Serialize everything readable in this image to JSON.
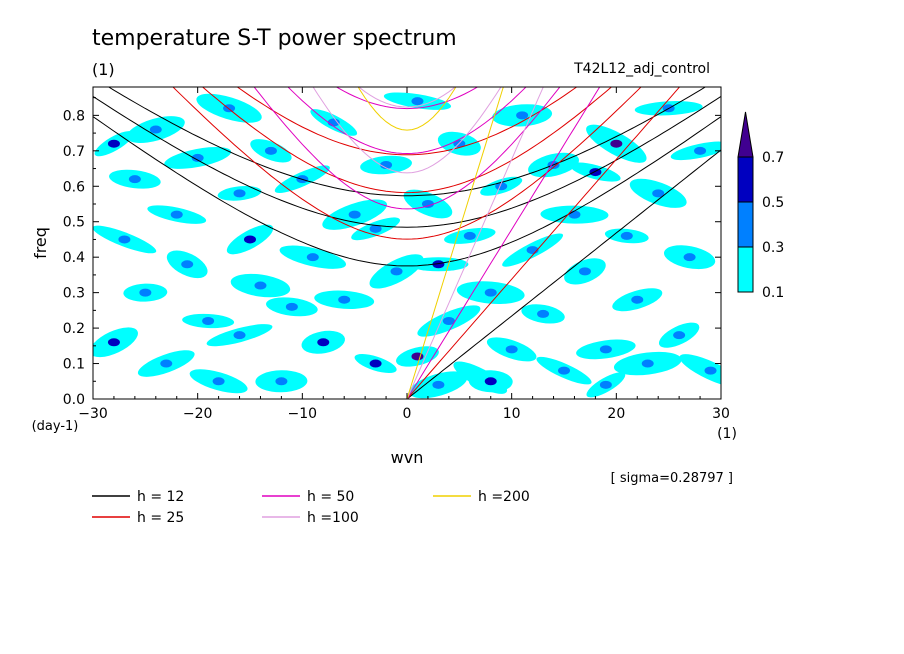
{
  "chart_data": {
    "type": "heatmap",
    "title": "temperature S-T power spectrum",
    "subtitle_left": "(1)",
    "subtitle_right": "T42L12_adj_control",
    "xlabel": "wvn",
    "ylabel": "freq",
    "x_unit": "(1)",
    "y_unit": "(day-1)",
    "xlim": [
      -30,
      30
    ],
    "ylim": [
      0,
      0.88
    ],
    "xticks": [
      -30,
      -20,
      -10,
      0,
      10,
      20,
      30
    ],
    "yticks": [
      0.0,
      0.1,
      0.2,
      0.3,
      0.4,
      0.5,
      0.6,
      0.7,
      0.8
    ],
    "sigma_note": "[ sigma=0.28797 ]",
    "colorbar": {
      "levels": [
        "0.1",
        "0.3",
        "0.5",
        "0.7"
      ],
      "colors": [
        "#00ffff",
        "#0080ff",
        "#0000c0",
        "#400090"
      ]
    },
    "blobs": [
      {
        "x": -28,
        "y": 0.72,
        "v": 0.5
      },
      {
        "x": -26,
        "y": 0.62,
        "v": 0.3
      },
      {
        "x": -24,
        "y": 0.76,
        "v": 0.3
      },
      {
        "x": -27,
        "y": 0.45,
        "v": 0.3
      },
      {
        "x": -25,
        "y": 0.3,
        "v": 0.3
      },
      {
        "x": -28,
        "y": 0.16,
        "v": 0.5
      },
      {
        "x": -22,
        "y": 0.52,
        "v": 0.3
      },
      {
        "x": -20,
        "y": 0.68,
        "v": 0.3
      },
      {
        "x": -21,
        "y": 0.38,
        "v": 0.3
      },
      {
        "x": -19,
        "y": 0.22,
        "v": 0.3
      },
      {
        "x": -23,
        "y": 0.1,
        "v": 0.3
      },
      {
        "x": -17,
        "y": 0.82,
        "v": 0.3
      },
      {
        "x": -16,
        "y": 0.58,
        "v": 0.3
      },
      {
        "x": -15,
        "y": 0.45,
        "v": 0.5
      },
      {
        "x": -14,
        "y": 0.32,
        "v": 0.3
      },
      {
        "x": -16,
        "y": 0.18,
        "v": 0.3
      },
      {
        "x": -13,
        "y": 0.7,
        "v": 0.3
      },
      {
        "x": -12,
        "y": 0.05,
        "v": 0.3
      },
      {
        "x": -10,
        "y": 0.62,
        "v": 0.3
      },
      {
        "x": -9,
        "y": 0.4,
        "v": 0.3
      },
      {
        "x": -8,
        "y": 0.16,
        "v": 0.5
      },
      {
        "x": -7,
        "y": 0.78,
        "v": 0.3
      },
      {
        "x": -6,
        "y": 0.28,
        "v": 0.3
      },
      {
        "x": -5,
        "y": 0.52,
        "v": 0.3
      },
      {
        "x": -3,
        "y": 0.1,
        "v": 0.5
      },
      {
        "x": -2,
        "y": 0.66,
        "v": 0.3
      },
      {
        "x": -1,
        "y": 0.36,
        "v": 0.3
      },
      {
        "x": 1,
        "y": 0.84,
        "v": 0.3
      },
      {
        "x": 1,
        "y": 0.12,
        "v": 0.7
      },
      {
        "x": 2,
        "y": 0.55,
        "v": 0.3
      },
      {
        "x": 3,
        "y": 0.38,
        "v": 0.5
      },
      {
        "x": 4,
        "y": 0.22,
        "v": 0.3
      },
      {
        "x": 5,
        "y": 0.72,
        "v": 0.3
      },
      {
        "x": 6,
        "y": 0.46,
        "v": 0.3
      },
      {
        "x": 7,
        "y": 0.06,
        "v": 0.3
      },
      {
        "x": 8,
        "y": 0.3,
        "v": 0.3
      },
      {
        "x": 9,
        "y": 0.6,
        "v": 0.3
      },
      {
        "x": 10,
        "y": 0.14,
        "v": 0.3
      },
      {
        "x": 11,
        "y": 0.8,
        "v": 0.3
      },
      {
        "x": 12,
        "y": 0.42,
        "v": 0.3
      },
      {
        "x": 13,
        "y": 0.24,
        "v": 0.3
      },
      {
        "x": 14,
        "y": 0.66,
        "v": 0.3
      },
      {
        "x": 15,
        "y": 0.08,
        "v": 0.3
      },
      {
        "x": 16,
        "y": 0.52,
        "v": 0.3
      },
      {
        "x": 17,
        "y": 0.36,
        "v": 0.3
      },
      {
        "x": 18,
        "y": 0.64,
        "v": 0.5
      },
      {
        "x": 19,
        "y": 0.14,
        "v": 0.3
      },
      {
        "x": 20,
        "y": 0.72,
        "v": 0.7
      },
      {
        "x": 21,
        "y": 0.46,
        "v": 0.3
      },
      {
        "x": 22,
        "y": 0.28,
        "v": 0.3
      },
      {
        "x": 24,
        "y": 0.58,
        "v": 0.3
      },
      {
        "x": 25,
        "y": 0.82,
        "v": 0.3
      },
      {
        "x": 26,
        "y": 0.18,
        "v": 0.3
      },
      {
        "x": 27,
        "y": 0.4,
        "v": 0.3
      },
      {
        "x": 28,
        "y": 0.7,
        "v": 0.3
      },
      {
        "x": 29,
        "y": 0.08,
        "v": 0.3
      },
      {
        "x": 8,
        "y": 0.05,
        "v": 0.5
      },
      {
        "x": -3,
        "y": 0.48,
        "v": 0.3
      },
      {
        "x": -18,
        "y": 0.05,
        "v": 0.3
      },
      {
        "x": 23,
        "y": 0.1,
        "v": 0.3
      },
      {
        "x": 19,
        "y": 0.04,
        "v": 0.3
      },
      {
        "x": -11,
        "y": 0.26,
        "v": 0.3
      },
      {
        "x": 3,
        "y": 0.04,
        "v": 0.3
      }
    ],
    "series": [
      {
        "name": "h = 12",
        "h": 12,
        "color": "#000000"
      },
      {
        "name": "h = 25",
        "h": 25,
        "color": "#e00000"
      },
      {
        "name": "h = 50",
        "h": 50,
        "color": "#e000c0"
      },
      {
        "name": "h =100",
        "h": 100,
        "color": "#e0a0e0"
      },
      {
        "name": "h =200",
        "h": 200,
        "color": "#f0d000"
      }
    ]
  }
}
